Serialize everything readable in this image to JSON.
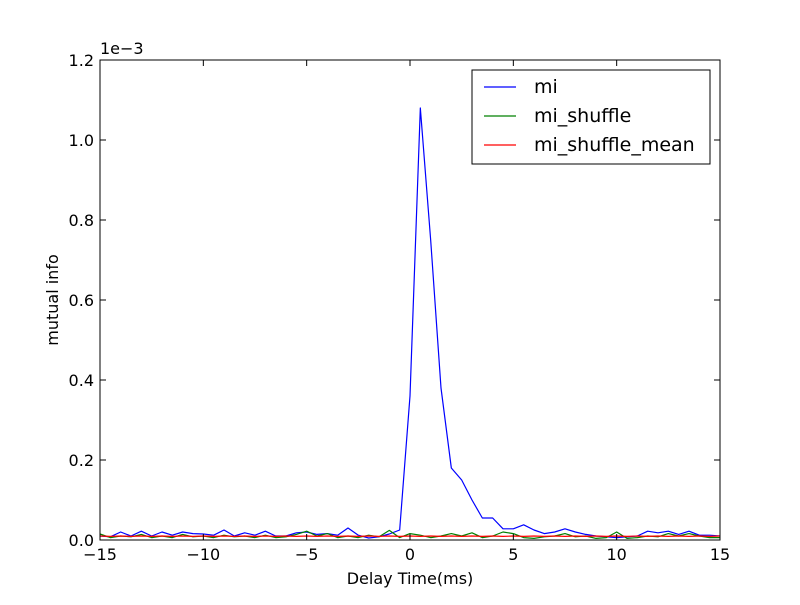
{
  "chart_data": {
    "type": "line",
    "xlabel": "Delay Time(ms)",
    "ylabel": "mutual info",
    "xlim": [
      -15,
      15
    ],
    "ylim": [
      0,
      1.2
    ],
    "y_multiplier": "1e−3",
    "x_ticks": [
      -15,
      -10,
      -5,
      0,
      5,
      10,
      15
    ],
    "x_tick_labels": [
      "−15",
      "−10",
      "−5",
      "0",
      "5",
      "10",
      "15"
    ],
    "y_ticks": [
      0.0,
      0.2,
      0.4,
      0.6,
      0.8,
      1.0,
      1.2
    ],
    "y_tick_labels": [
      "0.0",
      "0.2",
      "0.4",
      "0.6",
      "0.8",
      "1.0",
      "1.2"
    ],
    "legend_position": "top-right",
    "grid": false,
    "x": [
      -15,
      -14.5,
      -14,
      -13.5,
      -13,
      -12.5,
      -12,
      -11.5,
      -11,
      -10.5,
      -10,
      -9.5,
      -9,
      -8.5,
      -8,
      -7.5,
      -7,
      -6.5,
      -6,
      -5.5,
      -5,
      -4.5,
      -4,
      -3.5,
      -3,
      -2.5,
      -2,
      -1.5,
      -1,
      -0.5,
      0,
      0.5,
      1,
      1.5,
      2,
      2.5,
      3,
      3.5,
      4,
      4.5,
      5,
      5.5,
      6,
      6.5,
      7,
      7.5,
      8,
      8.5,
      9,
      9.5,
      10,
      10.5,
      11,
      11.5,
      12,
      12.5,
      13,
      13.5,
      14,
      14.5,
      15
    ],
    "series": [
      {
        "name": "mi",
        "color": "#0000ff",
        "values": [
          0.01,
          0.008,
          0.02,
          0.01,
          0.022,
          0.01,
          0.02,
          0.012,
          0.02,
          0.016,
          0.015,
          0.012,
          0.025,
          0.01,
          0.018,
          0.012,
          0.022,
          0.01,
          0.01,
          0.018,
          0.02,
          0.014,
          0.016,
          0.012,
          0.03,
          0.012,
          0.005,
          0.008,
          0.015,
          0.025,
          0.36,
          1.08,
          0.75,
          0.38,
          0.18,
          0.15,
          0.1,
          0.055,
          0.055,
          0.028,
          0.028,
          0.038,
          0.025,
          0.016,
          0.02,
          0.028,
          0.02,
          0.014,
          0.01,
          0.008,
          0.006,
          0.008,
          0.01,
          0.022,
          0.018,
          0.022,
          0.014,
          0.022,
          0.012,
          0.012,
          0.01
        ]
      },
      {
        "name": "mi_shuffle",
        "color": "#008000",
        "values": [
          0.015,
          0.006,
          0.01,
          0.008,
          0.014,
          0.006,
          0.01,
          0.006,
          0.014,
          0.008,
          0.01,
          0.006,
          0.012,
          0.008,
          0.01,
          0.006,
          0.012,
          0.006,
          0.008,
          0.014,
          0.022,
          0.01,
          0.016,
          0.006,
          0.01,
          0.006,
          0.012,
          0.008,
          0.024,
          0.006,
          0.016,
          0.012,
          0.006,
          0.01,
          0.016,
          0.01,
          0.018,
          0.006,
          0.01,
          0.02,
          0.016,
          0.006,
          0.004,
          0.008,
          0.01,
          0.016,
          0.008,
          0.01,
          0.004,
          0.006,
          0.02,
          0.004,
          0.006,
          0.01,
          0.008,
          0.016,
          0.01,
          0.016,
          0.01,
          0.006,
          0.006
        ]
      },
      {
        "name": "mi_shuffle_mean",
        "color": "#ff0000",
        "values": [
          0.01,
          0.009,
          0.01,
          0.009,
          0.01,
          0.009,
          0.01,
          0.009,
          0.01,
          0.009,
          0.01,
          0.009,
          0.01,
          0.009,
          0.01,
          0.009,
          0.01,
          0.009,
          0.01,
          0.009,
          0.01,
          0.009,
          0.01,
          0.009,
          0.01,
          0.009,
          0.01,
          0.009,
          0.01,
          0.009,
          0.01,
          0.009,
          0.01,
          0.009,
          0.01,
          0.009,
          0.01,
          0.009,
          0.01,
          0.009,
          0.01,
          0.009,
          0.01,
          0.009,
          0.01,
          0.009,
          0.01,
          0.009,
          0.01,
          0.009,
          0.01,
          0.009,
          0.01,
          0.009,
          0.01,
          0.009,
          0.01,
          0.009,
          0.01,
          0.009,
          0.01
        ]
      }
    ]
  }
}
